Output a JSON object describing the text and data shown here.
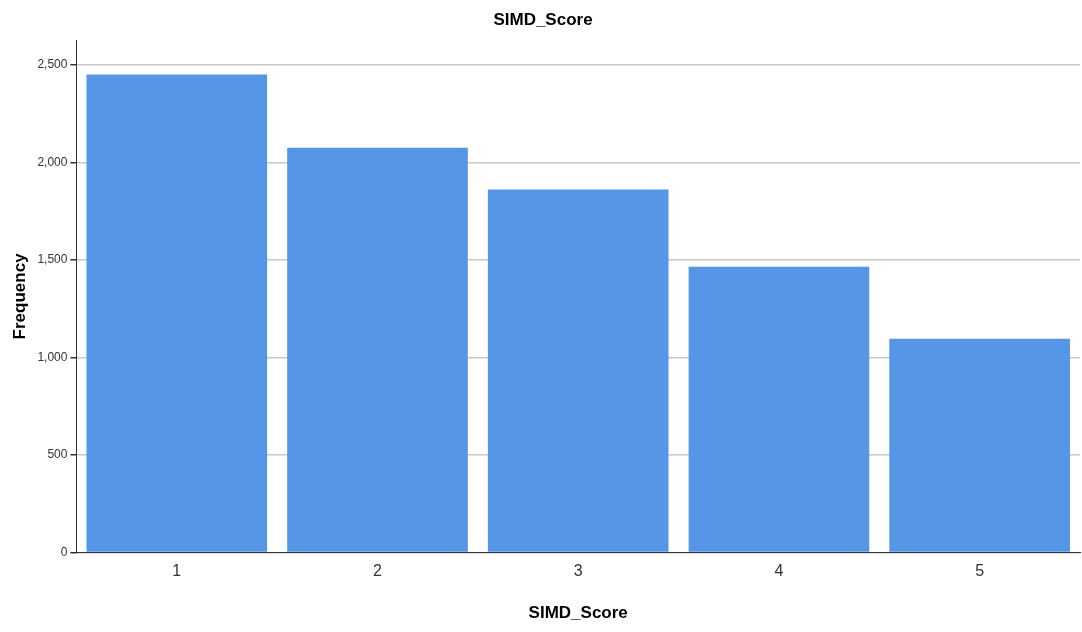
{
  "chart_data": {
    "type": "bar",
    "title": "SIMD_Score",
    "xlabel": "SIMD_Score",
    "ylabel": "Frequency",
    "categories": [
      "1",
      "2",
      "3",
      "4",
      "5"
    ],
    "values": [
      2450,
      2075,
      1860,
      1465,
      1095
    ],
    "color": "#5596e6",
    "ylim": [
      0,
      2625
    ],
    "yticks": [
      0,
      {
        "value": 500,
        "label": "500"
      },
      {
        "value": 1000,
        "label": "1,000"
      },
      {
        "value": 1500,
        "label": "1,500"
      },
      {
        "value": 2000,
        "label": "2,000"
      },
      {
        "value": 2500,
        "label": "2,500"
      }
    ],
    "grid": "y",
    "legend": false
  }
}
